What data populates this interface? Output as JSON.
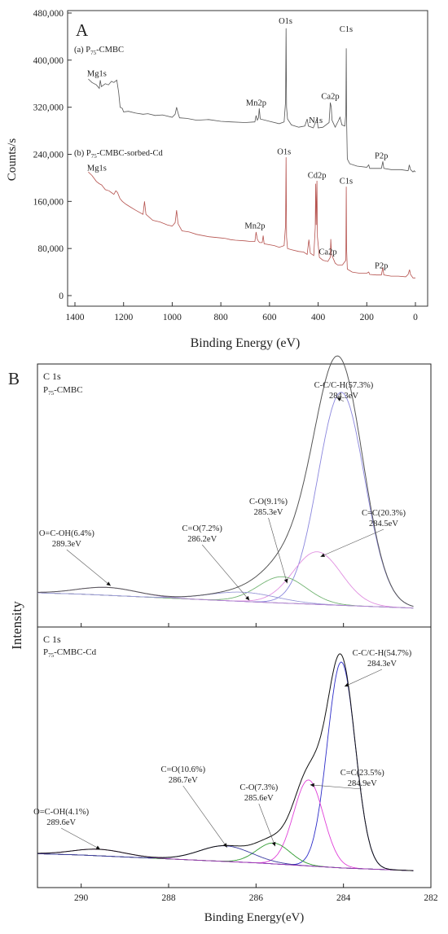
{
  "chart_data": [
    {
      "type": "line",
      "panel_letter": "A",
      "xlabel": "Binding Energy (eV)",
      "ylabel": "Counts/s",
      "xlim": [
        1400,
        0
      ],
      "ylim": [
        0,
        480000
      ],
      "x_reversed": true,
      "x_ticks": [
        1400,
        1200,
        1000,
        800,
        600,
        400,
        200,
        0
      ],
      "y_ticks": [
        0,
        80000,
        160000,
        240000,
        320000,
        400000,
        480000
      ],
      "y_tick_labels": [
        "0",
        "80,000",
        "160,000",
        "240,000",
        "320,000",
        "400,000",
        "480,000"
      ],
      "series": [
        {
          "label_prefix": "(a) P",
          "label_sub": "75",
          "label_suffix": "-CMBC",
          "color": "#555555",
          "points": [
            [
              1345,
              368000
            ],
            [
              1330,
              362000
            ],
            [
              1312,
              358000
            ],
            [
              1300,
              352000
            ],
            [
              1296,
              366000
            ],
            [
              1291,
              355000
            ],
            [
              1275,
              360000
            ],
            [
              1262,
              358000
            ],
            [
              1250,
              364000
            ],
            [
              1240,
              362000
            ],
            [
              1228,
              366000
            ],
            [
              1220,
              345000
            ],
            [
              1214,
              320000
            ],
            [
              1205,
              318000
            ],
            [
              1200,
              312000
            ],
            [
              1180,
              313000
            ],
            [
              1150,
              310000
            ],
            [
              1120,
              308000
            ],
            [
              1100,
              309000
            ],
            [
              1070,
              306000
            ],
            [
              1040,
              307000
            ],
            [
              1000,
              303000
            ],
            [
              988,
              308000
            ],
            [
              982,
              320000
            ],
            [
              976,
              310000
            ],
            [
              970,
              302000
            ],
            [
              940,
              301000
            ],
            [
              900,
              298000
            ],
            [
              850,
              299000
            ],
            [
              800,
              296000
            ],
            [
              760,
              295000
            ],
            [
              700,
              294000
            ],
            [
              660,
              295000
            ],
            [
              655,
              306000
            ],
            [
              650,
              298000
            ],
            [
              645,
              302000
            ],
            [
              642,
              318000
            ],
            [
              638,
              300000
            ],
            [
              600,
              296000
            ],
            [
              560,
              292000
            ],
            [
              540,
              295000
            ],
            [
              534,
              330000
            ],
            [
              532,
              454000
            ],
            [
              530,
              320000
            ],
            [
              526,
              300000
            ],
            [
              510,
              290000
            ],
            [
              480,
              286000
            ],
            [
              455,
              288000
            ],
            [
              445,
              300000
            ],
            [
              440,
              288000
            ],
            [
              420,
              285000
            ],
            [
              405,
              300000
            ],
            [
              400,
              285000
            ],
            [
              380,
              286000
            ],
            [
              355,
              294000
            ],
            [
              350,
              328000
            ],
            [
              346,
              320000
            ],
            [
              343,
              298000
            ],
            [
              330,
              286000
            ],
            [
              318,
              296000
            ],
            [
              310,
              303000
            ],
            [
              302,
              290000
            ],
            [
              290,
              288000
            ],
            [
              286,
              310000
            ],
            [
              284.5,
              420000
            ],
            [
              283,
              300000
            ],
            [
              280,
              232000
            ],
            [
              270,
              224000
            ],
            [
              240,
              220000
            ],
            [
              200,
              218000
            ],
            [
              192,
              222000
            ],
            [
              188,
              216000
            ],
            [
              170,
              216000
            ],
            [
              140,
              216000
            ],
            [
              134,
              228000
            ],
            [
              130,
              216000
            ],
            [
              100,
              214000
            ],
            [
              60,
              214000
            ],
            [
              30,
              212000
            ],
            [
              25,
              222000
            ],
            [
              20,
              214000
            ],
            [
              10,
              210000
            ],
            [
              5,
              212000
            ],
            [
              0,
              210000
            ]
          ]
        },
        {
          "label_prefix": "(b) P",
          "label_sub": "75",
          "label_suffix": "-CMBC-sorbed-Cd",
          "color": "#b5524e",
          "points": [
            [
              1345,
              210000
            ],
            [
              1330,
              204000
            ],
            [
              1312,
              194000
            ],
            [
              1300,
              190000
            ],
            [
              1290,
              188000
            ],
            [
              1275,
              180000
            ],
            [
              1260,
              178000
            ],
            [
              1250,
              175000
            ],
            [
              1240,
              172000
            ],
            [
              1232,
              178000
            ],
            [
              1225,
              175000
            ],
            [
              1215,
              165000
            ],
            [
              1205,
              160000
            ],
            [
              1190,
              155000
            ],
            [
              1170,
              150000
            ],
            [
              1150,
              145000
            ],
            [
              1120,
              138000
            ],
            [
              1114,
              160000
            ],
            [
              1108,
              138000
            ],
            [
              1080,
              128000
            ],
            [
              1050,
              125000
            ],
            [
              1020,
              120000
            ],
            [
              1000,
              118000
            ],
            [
              988,
              124000
            ],
            [
              982,
              145000
            ],
            [
              976,
              122000
            ],
            [
              960,
              110000
            ],
            [
              930,
              108000
            ],
            [
              900,
              104000
            ],
            [
              850,
              100000
            ],
            [
              800,
              98000
            ],
            [
              780,
              97000
            ],
            [
              760,
              95000
            ],
            [
              740,
              94000
            ],
            [
              700,
              93000
            ],
            [
              680,
              92000
            ],
            [
              660,
              92000
            ],
            [
              655,
              108000
            ],
            [
              650,
              96000
            ],
            [
              645,
              92000
            ],
            [
              640,
              90000
            ],
            [
              630,
              90000
            ],
            [
              626,
              102000
            ],
            [
              622,
              88000
            ],
            [
              580,
              85000
            ],
            [
              560,
              82000
            ],
            [
              540,
              85000
            ],
            [
              534,
              120000
            ],
            [
              532,
              235000
            ],
            [
              530,
              100000
            ],
            [
              526,
              80000
            ],
            [
              510,
              78000
            ],
            [
              480,
              75000
            ],
            [
              460,
              74000
            ],
            [
              445,
              70000
            ],
            [
              438,
              95000
            ],
            [
              432,
              72000
            ],
            [
              418,
              68000
            ],
            [
              412,
              115000
            ],
            [
              410,
              190000
            ],
            [
              408,
              120000
            ],
            [
              405,
              195000
            ],
            [
              403,
              100000
            ],
            [
              395,
              65000
            ],
            [
              380,
              60000
            ],
            [
              360,
              58000
            ],
            [
              350,
              65000
            ],
            [
              348,
              96000
            ],
            [
              345,
              70000
            ],
            [
              330,
              55000
            ],
            [
              320,
              52000
            ],
            [
              300,
              52000
            ],
            [
              286,
              60000
            ],
            [
              284.5,
              185000
            ],
            [
              283,
              80000
            ],
            [
              280,
              45000
            ],
            [
              260,
              40000
            ],
            [
              230,
              38000
            ],
            [
              200,
              38000
            ],
            [
              192,
              40000
            ],
            [
              188,
              36000
            ],
            [
              160,
              35000
            ],
            [
              140,
              35000
            ],
            [
              134,
              48000
            ],
            [
              130,
              35000
            ],
            [
              100,
              33000
            ],
            [
              70,
              33000
            ],
            [
              40,
              32000
            ],
            [
              30,
              36000
            ],
            [
              24,
              44000
            ],
            [
              20,
              36000
            ],
            [
              10,
              30000
            ],
            [
              0,
              30000
            ]
          ]
        }
      ],
      "annotations": [
        {
          "text": "O1s",
          "x": 534,
          "y": 462000
        },
        {
          "text": "C1s",
          "x": 285,
          "y": 448000
        },
        {
          "text": "Mg1s",
          "x": 1310,
          "y": 373000
        },
        {
          "text": "Mn2p",
          "x": 655,
          "y": 323000
        },
        {
          "text": "Ca2p",
          "x": 350,
          "y": 334000
        },
        {
          "text": "N1s",
          "x": 410,
          "y": 293000
        },
        {
          "text": "P2p",
          "x": 140,
          "y": 233000
        },
        {
          "text": "O1s",
          "x": 540,
          "y": 240000
        },
        {
          "text": "Mg1s",
          "x": 1310,
          "y": 212000
        },
        {
          "text": "Cd2p",
          "x": 405,
          "y": 200000
        },
        {
          "text": "C1s",
          "x": 285,
          "y": 190000
        },
        {
          "text": "Mn2p",
          "x": 660,
          "y": 114000
        },
        {
          "text": "Ca2p",
          "x": 360,
          "y": 70000
        },
        {
          "text": "P2p",
          "x": 140,
          "y": 46000
        }
      ]
    },
    {
      "type": "line",
      "panel_letter": "B",
      "xlabel": "Binding Energy(eV)",
      "ylabel": "Intensity",
      "xlim": [
        291,
        282
      ],
      "x_reversed": true,
      "x_ticks": [
        290,
        288,
        286,
        284,
        282
      ],
      "subplots": [
        {
          "title_line1": "C 1s",
          "title_prefix": "P",
          "title_sub": "75",
          "title_suffix": "-CMBC",
          "baseline": [
            [
              291,
              0.13
            ],
            [
              290,
              0.125
            ],
            [
              288,
              0.11
            ],
            [
              286,
              0.095
            ],
            [
              284,
              0.082
            ],
            [
              282.4,
              0.072
            ]
          ],
          "peaks": [
            {
              "label": "C-C/C-H(57.3%)",
              "energy": "284.3eV",
              "center": 284.05,
              "fwhm": 1.25,
              "height": 0.81,
              "color": "#8a86dd"
            },
            {
              "label": "C=C(20.3%)",
              "energy": "284.5eV",
              "center": 284.6,
              "fwhm": 1.3,
              "height": 0.2,
              "color": "#e08fe0"
            },
            {
              "label": "C-O(9.1%)",
              "energy": "285.3eV",
              "center": 285.4,
              "fwhm": 1.3,
              "height": 0.1,
              "color": "#72b472"
            },
            {
              "label": "C=O(7.2%)",
              "energy": "286.2eV",
              "center": 286.3,
              "fwhm": 1.8,
              "height": 0.035,
              "color": "#9a9ad8"
            },
            {
              "label": "O=C-OH(6.4%)",
              "energy": "289.3eV",
              "center": 289.4,
              "fwhm": 1.6,
              "height": 0.03,
              "color": "#b184d0"
            }
          ],
          "envelope_color": "#555555"
        },
        {
          "title_line1": "C 1s",
          "title_prefix": "P",
          "title_sub": "75",
          "title_suffix": "-CMBC-Cd",
          "baseline": [
            [
              291,
              0.13
            ],
            [
              290,
              0.125
            ],
            [
              288,
              0.11
            ],
            [
              286,
              0.095
            ],
            [
              284,
              0.075
            ],
            [
              282.4,
              0.065
            ]
          ],
          "peaks": [
            {
              "label": "C-C/C-H(54.7%)",
              "energy": "284.3eV",
              "center": 284.05,
              "fwhm": 0.75,
              "height": 0.79,
              "color": "#2c2cc8"
            },
            {
              "label": "C=C(23.5%)",
              "energy": "284.9eV",
              "center": 284.8,
              "fwhm": 0.8,
              "height": 0.33,
              "color": "#e040d8"
            },
            {
              "label": "C-O(7.3%)",
              "energy": "285.6eV",
              "center": 285.6,
              "fwhm": 0.9,
              "height": 0.08,
              "color": "#2e9a2e"
            },
            {
              "label": "C=O(10.6%)",
              "energy": "286.7eV",
              "center": 286.7,
              "fwhm": 1.4,
              "height": 0.06,
              "color": "#3a3aa0"
            },
            {
              "label": "O=C-OH(4.1%)",
              "energy": "289.6eV",
              "center": 289.6,
              "fwhm": 1.4,
              "height": 0.025,
              "color": "#9b3ab0"
            }
          ],
          "envelope_color": "#111111"
        }
      ]
    }
  ]
}
